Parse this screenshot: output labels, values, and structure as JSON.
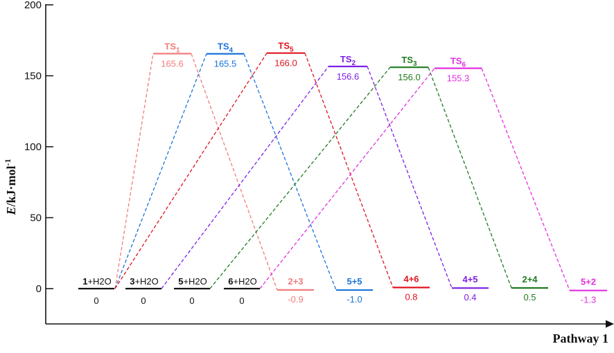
{
  "chart_data": {
    "type": "energy-profile",
    "xlabel": "Pathway 1",
    "ylabel": "E/kJ·mol-1",
    "ylabel_parts": {
      "var": "E",
      "unit": "/kJ·mol",
      "sup": "-1"
    },
    "ylim": [
      -15,
      200
    ],
    "yticks": [
      0,
      50,
      100,
      150,
      200
    ],
    "reactants": [
      {
        "bold": "1",
        "rest": "+H2O",
        "label": "1+H2O",
        "value": 0
      },
      {
        "bold": "3",
        "rest": "+H2O",
        "label": "3+H2O",
        "value": 0
      },
      {
        "bold": "5",
        "rest": "+H2O",
        "label": "5+H2O",
        "value": 0
      },
      {
        "bold": "6",
        "rest": "+H2O",
        "label": "6+H2O",
        "value": 0
      }
    ],
    "series": [
      {
        "name": "TS1",
        "ts_base": "TS",
        "ts_sub": "1",
        "ts_value": 165.6,
        "ts_text": "165.6",
        "product": "2+3",
        "product_value": -0.9,
        "product_text": "-0.9",
        "color": "#f07c7c"
      },
      {
        "name": "TS4",
        "ts_base": "TS",
        "ts_sub": "4",
        "ts_value": 165.5,
        "ts_text": "165.5",
        "product": "5+5",
        "product_value": -1.0,
        "product_text": "-1.0",
        "color": "#1a73d9"
      },
      {
        "name": "TS5",
        "ts_base": "TS",
        "ts_sub": "5",
        "ts_value": 166.0,
        "ts_text": "166.0",
        "product": "4+6",
        "product_value": 0.8,
        "product_text": "0.8",
        "color": "#e0141e"
      },
      {
        "name": "TS2",
        "ts_base": "TS",
        "ts_sub": "2",
        "ts_value": 156.6,
        "ts_text": "156.6",
        "product": "4+5",
        "product_value": 0.4,
        "product_text": "0.4",
        "color": "#7c1ee6"
      },
      {
        "name": "TS3",
        "ts_base": "TS",
        "ts_sub": "3",
        "ts_value": 156.0,
        "ts_text": "156.0",
        "product": "2+4",
        "product_value": 0.5,
        "product_text": "0.5",
        "color": "#1f7a1f"
      },
      {
        "name": "TS6",
        "ts_base": "TS",
        "ts_sub": "6",
        "ts_value": 155.3,
        "ts_text": "155.3",
        "product": "5+2",
        "product_value": -1.3,
        "product_text": "-1.3",
        "color": "#e22fe0"
      }
    ]
  }
}
